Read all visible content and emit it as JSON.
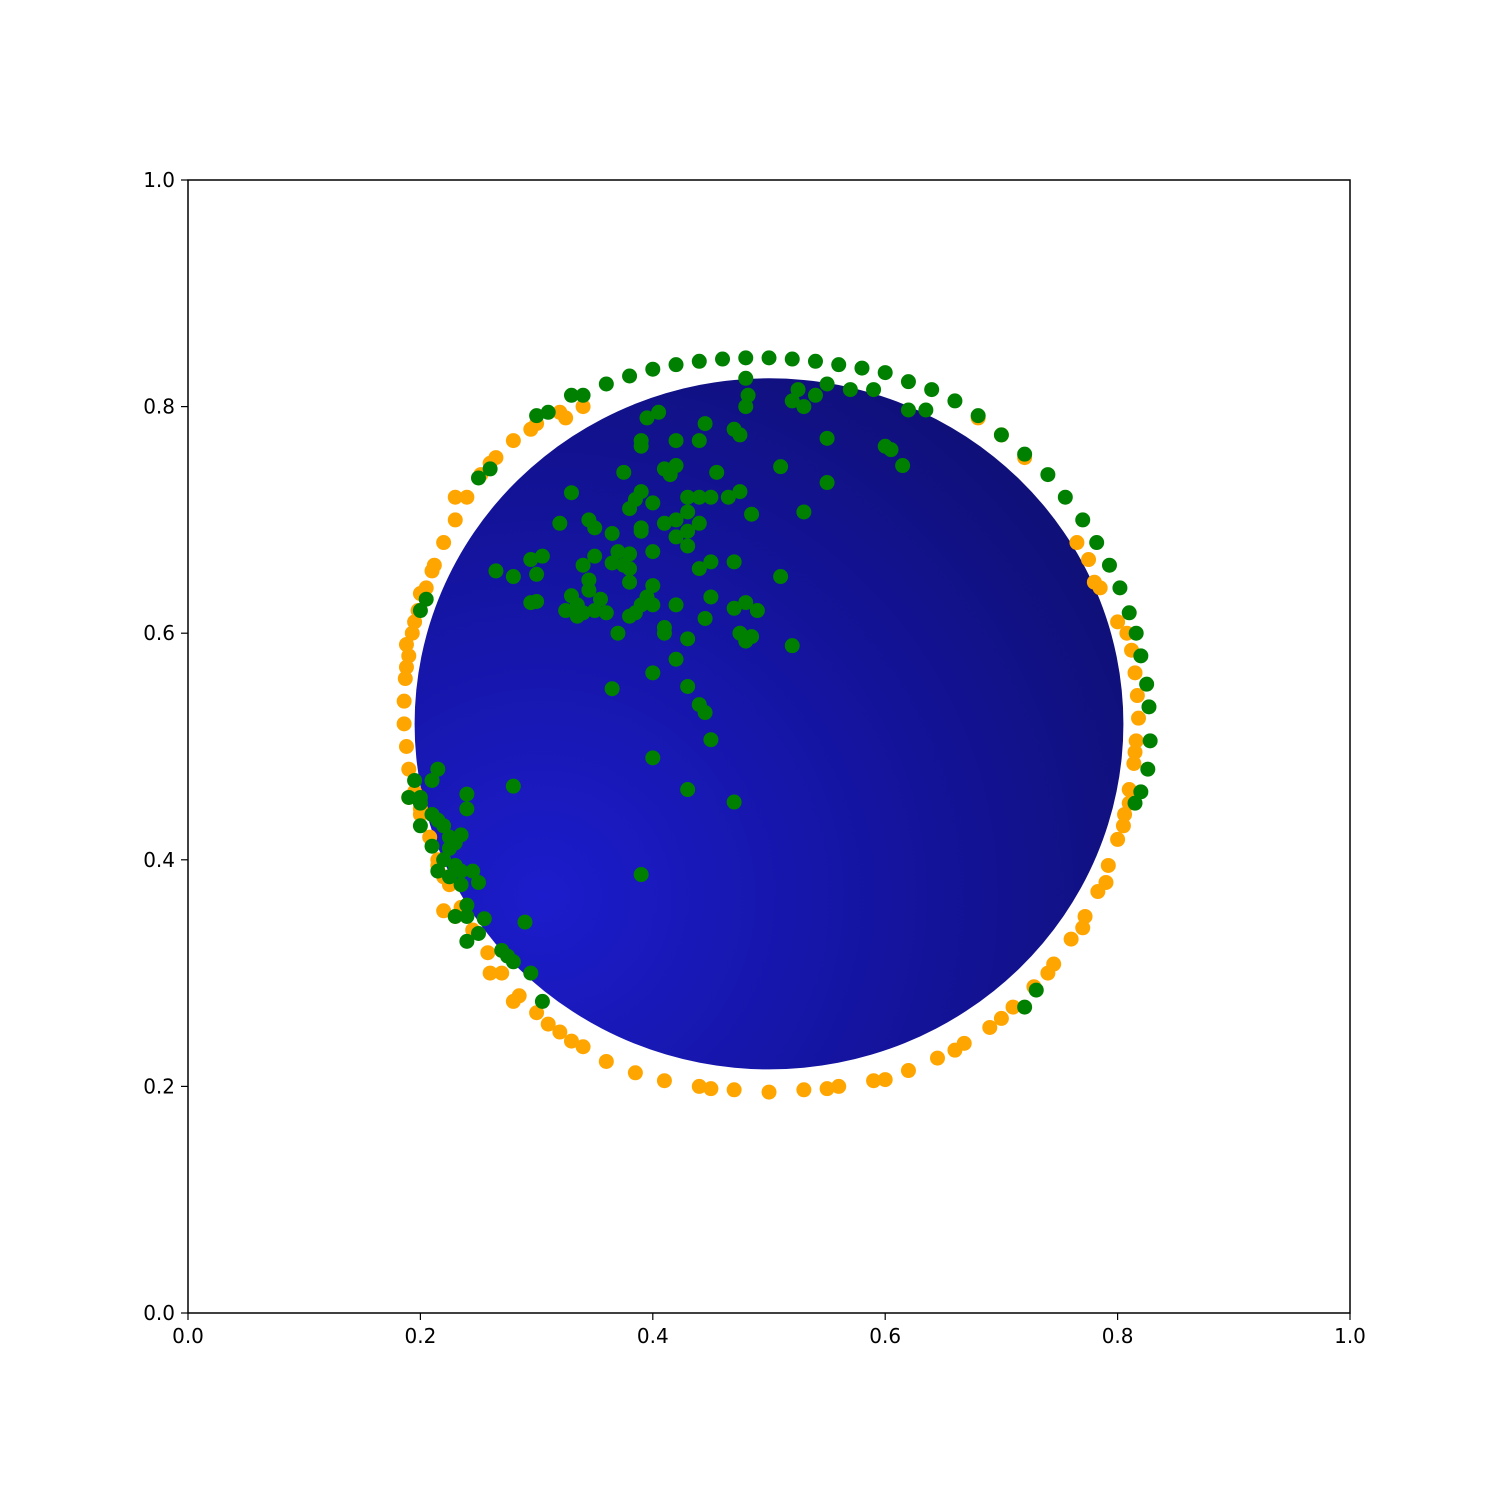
{
  "chart_data": {
    "type": "scatter",
    "title": "",
    "xlabel": "",
    "ylabel": "",
    "xlim": [
      0.0,
      1.0
    ],
    "ylim": [
      0.0,
      1.0
    ],
    "grid": false,
    "legend": "none",
    "x_ticks": [
      "0.0",
      "0.2",
      "0.4",
      "0.6",
      "0.8",
      "1.0"
    ],
    "y_ticks": [
      "0.0",
      "0.2",
      "0.4",
      "0.6",
      "0.8",
      "1.0"
    ],
    "sphere": {
      "center": [
        0.5,
        0.52
      ],
      "radius": 0.305,
      "color_light": "#1c1ccc",
      "color_dark": "#0f0f70"
    },
    "colors": {
      "orange": "#ffa500",
      "green": "#008000"
    },
    "series": [
      {
        "color": "#ffa500",
        "points": [
          [
            0.5,
            0.195
          ],
          [
            0.47,
            0.197
          ],
          [
            0.44,
            0.2
          ],
          [
            0.41,
            0.205
          ],
          [
            0.385,
            0.212
          ],
          [
            0.36,
            0.222
          ],
          [
            0.34,
            0.235
          ],
          [
            0.32,
            0.248
          ],
          [
            0.3,
            0.265
          ],
          [
            0.285,
            0.28
          ],
          [
            0.27,
            0.3
          ],
          [
            0.258,
            0.318
          ],
          [
            0.245,
            0.338
          ],
          [
            0.235,
            0.358
          ],
          [
            0.225,
            0.378
          ],
          [
            0.215,
            0.4
          ],
          [
            0.208,
            0.42
          ],
          [
            0.2,
            0.44
          ],
          [
            0.195,
            0.46
          ],
          [
            0.19,
            0.48
          ],
          [
            0.188,
            0.5
          ],
          [
            0.186,
            0.52
          ],
          [
            0.186,
            0.54
          ],
          [
            0.187,
            0.56
          ],
          [
            0.19,
            0.58
          ],
          [
            0.193,
            0.6
          ],
          [
            0.198,
            0.62
          ],
          [
            0.205,
            0.64
          ],
          [
            0.212,
            0.66
          ],
          [
            0.22,
            0.68
          ],
          [
            0.23,
            0.7
          ],
          [
            0.24,
            0.72
          ],
          [
            0.252,
            0.74
          ],
          [
            0.265,
            0.755
          ],
          [
            0.28,
            0.77
          ],
          [
            0.3,
            0.785
          ],
          [
            0.32,
            0.795
          ],
          [
            0.34,
            0.8
          ],
          [
            0.53,
            0.197
          ],
          [
            0.56,
            0.2
          ],
          [
            0.59,
            0.205
          ],
          [
            0.62,
            0.214
          ],
          [
            0.645,
            0.225
          ],
          [
            0.668,
            0.238
          ],
          [
            0.69,
            0.252
          ],
          [
            0.71,
            0.27
          ],
          [
            0.728,
            0.288
          ],
          [
            0.745,
            0.308
          ],
          [
            0.76,
            0.33
          ],
          [
            0.772,
            0.35
          ],
          [
            0.783,
            0.372
          ],
          [
            0.792,
            0.395
          ],
          [
            0.8,
            0.418
          ],
          [
            0.806,
            0.44
          ],
          [
            0.81,
            0.462
          ],
          [
            0.814,
            0.485
          ],
          [
            0.816,
            0.505
          ],
          [
            0.818,
            0.525
          ],
          [
            0.817,
            0.545
          ],
          [
            0.815,
            0.565
          ],
          [
            0.812,
            0.585
          ],
          [
            0.808,
            0.6
          ],
          [
            0.775,
            0.665
          ],
          [
            0.765,
            0.68
          ],
          [
            0.78,
            0.645
          ],
          [
            0.72,
            0.755
          ],
          [
            0.7,
            0.775
          ],
          [
            0.68,
            0.79
          ],
          [
            0.22,
            0.385
          ],
          [
            0.215,
            0.395
          ],
          [
            0.19,
            0.455
          ],
          [
            0.2,
            0.445
          ],
          [
            0.22,
            0.355
          ],
          [
            0.23,
            0.35
          ],
          [
            0.26,
            0.3
          ],
          [
            0.28,
            0.275
          ],
          [
            0.31,
            0.255
          ],
          [
            0.33,
            0.24
          ],
          [
            0.45,
            0.198
          ],
          [
            0.55,
            0.198
          ],
          [
            0.6,
            0.206
          ],
          [
            0.66,
            0.232
          ],
          [
            0.7,
            0.26
          ],
          [
            0.74,
            0.3
          ],
          [
            0.77,
            0.34
          ],
          [
            0.79,
            0.38
          ],
          [
            0.805,
            0.43
          ],
          [
            0.81,
            0.45
          ],
          [
            0.815,
            0.495
          ],
          [
            0.8,
            0.61
          ],
          [
            0.785,
            0.64
          ],
          [
            0.23,
            0.72
          ],
          [
            0.26,
            0.75
          ],
          [
            0.295,
            0.78
          ],
          [
            0.325,
            0.79
          ],
          [
            0.21,
            0.655
          ],
          [
            0.2,
            0.635
          ],
          [
            0.195,
            0.61
          ],
          [
            0.188,
            0.59
          ],
          [
            0.188,
            0.57
          ]
        ]
      },
      {
        "color": "#008000",
        "points": [
          [
            0.34,
            0.81
          ],
          [
            0.36,
            0.82
          ],
          [
            0.38,
            0.827
          ],
          [
            0.4,
            0.833
          ],
          [
            0.42,
            0.837
          ],
          [
            0.44,
            0.84
          ],
          [
            0.46,
            0.842
          ],
          [
            0.48,
            0.843
          ],
          [
            0.5,
            0.843
          ],
          [
            0.52,
            0.842
          ],
          [
            0.54,
            0.84
          ],
          [
            0.56,
            0.837
          ],
          [
            0.58,
            0.834
          ],
          [
            0.6,
            0.83
          ],
          [
            0.62,
            0.822
          ],
          [
            0.64,
            0.815
          ],
          [
            0.66,
            0.805
          ],
          [
            0.68,
            0.792
          ],
          [
            0.7,
            0.775
          ],
          [
            0.72,
            0.758
          ],
          [
            0.74,
            0.74
          ],
          [
            0.755,
            0.72
          ],
          [
            0.77,
            0.7
          ],
          [
            0.782,
            0.68
          ],
          [
            0.793,
            0.66
          ],
          [
            0.802,
            0.64
          ],
          [
            0.81,
            0.618
          ],
          [
            0.816,
            0.6
          ],
          [
            0.82,
            0.58
          ],
          [
            0.825,
            0.555
          ],
          [
            0.827,
            0.535
          ],
          [
            0.828,
            0.505
          ],
          [
            0.826,
            0.48
          ],
          [
            0.82,
            0.46
          ],
          [
            0.815,
            0.45
          ],
          [
            0.72,
            0.27
          ],
          [
            0.73,
            0.285
          ],
          [
            0.48,
            0.825
          ],
          [
            0.48,
            0.8
          ],
          [
            0.482,
            0.81
          ],
          [
            0.52,
            0.805
          ],
          [
            0.525,
            0.815
          ],
          [
            0.53,
            0.8
          ],
          [
            0.54,
            0.81
          ],
          [
            0.55,
            0.82
          ],
          [
            0.57,
            0.815
          ],
          [
            0.59,
            0.815
          ],
          [
            0.62,
            0.797
          ],
          [
            0.635,
            0.797
          ],
          [
            0.405,
            0.795
          ],
          [
            0.395,
            0.79
          ],
          [
            0.39,
            0.77
          ],
          [
            0.39,
            0.765
          ],
          [
            0.42,
            0.77
          ],
          [
            0.445,
            0.785
          ],
          [
            0.44,
            0.77
          ],
          [
            0.47,
            0.78
          ],
          [
            0.475,
            0.775
          ],
          [
            0.55,
            0.772
          ],
          [
            0.6,
            0.765
          ],
          [
            0.605,
            0.762
          ],
          [
            0.615,
            0.748
          ],
          [
            0.51,
            0.747
          ],
          [
            0.42,
            0.748
          ],
          [
            0.415,
            0.74
          ],
          [
            0.41,
            0.745
          ],
          [
            0.455,
            0.742
          ],
          [
            0.55,
            0.733
          ],
          [
            0.375,
            0.742
          ],
          [
            0.39,
            0.725
          ],
          [
            0.385,
            0.718
          ],
          [
            0.38,
            0.71
          ],
          [
            0.4,
            0.715
          ],
          [
            0.43,
            0.72
          ],
          [
            0.44,
            0.72
          ],
          [
            0.45,
            0.72
          ],
          [
            0.465,
            0.72
          ],
          [
            0.475,
            0.725
          ],
          [
            0.485,
            0.705
          ],
          [
            0.53,
            0.707
          ],
          [
            0.33,
            0.724
          ],
          [
            0.43,
            0.707
          ],
          [
            0.41,
            0.697
          ],
          [
            0.42,
            0.7
          ],
          [
            0.44,
            0.697
          ],
          [
            0.43,
            0.69
          ],
          [
            0.42,
            0.685
          ],
          [
            0.39,
            0.69
          ],
          [
            0.39,
            0.693
          ],
          [
            0.365,
            0.688
          ],
          [
            0.35,
            0.693
          ],
          [
            0.345,
            0.7
          ],
          [
            0.32,
            0.697
          ],
          [
            0.43,
            0.677
          ],
          [
            0.38,
            0.67
          ],
          [
            0.37,
            0.672
          ],
          [
            0.375,
            0.66
          ],
          [
            0.4,
            0.672
          ],
          [
            0.45,
            0.663
          ],
          [
            0.44,
            0.657
          ],
          [
            0.47,
            0.663
          ],
          [
            0.305,
            0.668
          ],
          [
            0.295,
            0.665
          ],
          [
            0.35,
            0.668
          ],
          [
            0.34,
            0.66
          ],
          [
            0.365,
            0.662
          ],
          [
            0.38,
            0.657
          ],
          [
            0.265,
            0.655
          ],
          [
            0.28,
            0.65
          ],
          [
            0.3,
            0.652
          ],
          [
            0.345,
            0.647
          ],
          [
            0.38,
            0.645
          ],
          [
            0.4,
            0.642
          ],
          [
            0.395,
            0.632
          ],
          [
            0.33,
            0.633
          ],
          [
            0.345,
            0.638
          ],
          [
            0.355,
            0.63
          ],
          [
            0.3,
            0.628
          ],
          [
            0.295,
            0.627
          ],
          [
            0.335,
            0.625
          ],
          [
            0.34,
            0.618
          ],
          [
            0.35,
            0.62
          ],
          [
            0.36,
            0.618
          ],
          [
            0.385,
            0.618
          ],
          [
            0.39,
            0.625
          ],
          [
            0.4,
            0.625
          ],
          [
            0.42,
            0.625
          ],
          [
            0.45,
            0.632
          ],
          [
            0.47,
            0.622
          ],
          [
            0.48,
            0.627
          ],
          [
            0.49,
            0.62
          ],
          [
            0.51,
            0.65
          ],
          [
            0.325,
            0.62
          ],
          [
            0.335,
            0.615
          ],
          [
            0.37,
            0.6
          ],
          [
            0.38,
            0.615
          ],
          [
            0.41,
            0.605
          ],
          [
            0.41,
            0.6
          ],
          [
            0.43,
            0.595
          ],
          [
            0.445,
            0.613
          ],
          [
            0.475,
            0.6
          ],
          [
            0.48,
            0.593
          ],
          [
            0.485,
            0.597
          ],
          [
            0.52,
            0.589
          ],
          [
            0.42,
            0.577
          ],
          [
            0.4,
            0.565
          ],
          [
            0.365,
            0.551
          ],
          [
            0.43,
            0.553
          ],
          [
            0.44,
            0.537
          ],
          [
            0.445,
            0.53
          ],
          [
            0.45,
            0.506
          ],
          [
            0.4,
            0.49
          ],
          [
            0.28,
            0.465
          ],
          [
            0.43,
            0.462
          ],
          [
            0.47,
            0.451
          ],
          [
            0.39,
            0.387
          ],
          [
            0.19,
            0.455
          ],
          [
            0.2,
            0.45
          ],
          [
            0.21,
            0.44
          ],
          [
            0.215,
            0.435
          ],
          [
            0.22,
            0.43
          ],
          [
            0.225,
            0.42
          ],
          [
            0.23,
            0.415
          ],
          [
            0.2,
            0.43
          ],
          [
            0.21,
            0.47
          ],
          [
            0.215,
            0.48
          ],
          [
            0.24,
            0.445
          ],
          [
            0.24,
            0.458
          ],
          [
            0.235,
            0.422
          ],
          [
            0.22,
            0.4
          ],
          [
            0.23,
            0.395
          ],
          [
            0.235,
            0.39
          ],
          [
            0.225,
            0.385
          ],
          [
            0.245,
            0.39
          ],
          [
            0.25,
            0.38
          ],
          [
            0.235,
            0.378
          ],
          [
            0.24,
            0.36
          ],
          [
            0.23,
            0.35
          ],
          [
            0.24,
            0.35
          ],
          [
            0.25,
            0.335
          ],
          [
            0.255,
            0.348
          ],
          [
            0.24,
            0.328
          ],
          [
            0.27,
            0.32
          ],
          [
            0.275,
            0.315
          ],
          [
            0.28,
            0.31
          ],
          [
            0.29,
            0.345
          ],
          [
            0.295,
            0.3
          ],
          [
            0.305,
            0.275
          ],
          [
            0.215,
            0.39
          ],
          [
            0.2,
            0.455
          ],
          [
            0.21,
            0.412
          ],
          [
            0.225,
            0.41
          ],
          [
            0.195,
            0.47
          ],
          [
            0.2,
            0.62
          ],
          [
            0.205,
            0.63
          ],
          [
            0.25,
            0.737
          ],
          [
            0.26,
            0.745
          ],
          [
            0.33,
            0.81
          ],
          [
            0.31,
            0.795
          ],
          [
            0.3,
            0.792
          ]
        ]
      }
    ]
  }
}
